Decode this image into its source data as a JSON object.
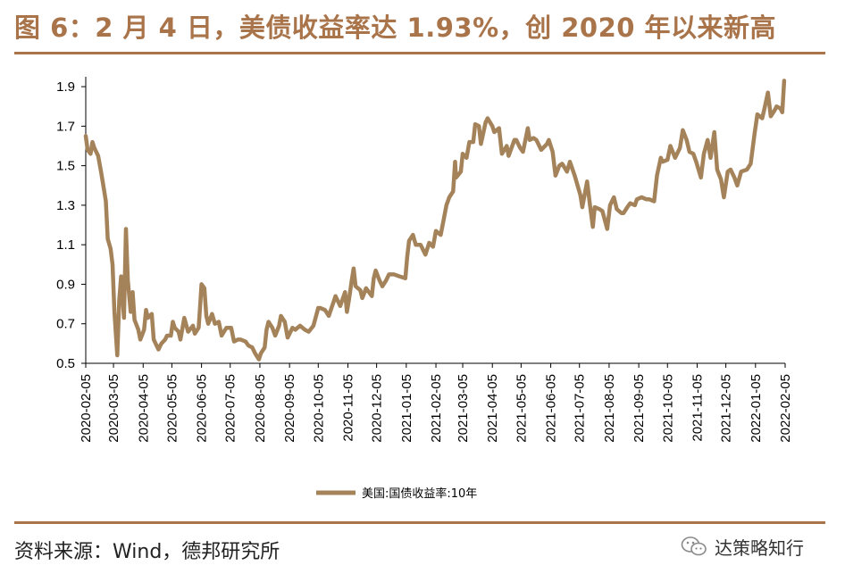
{
  "title": "图 6：2 月 4 日，美债收益率达 1.93%，创 2020 年以来新高",
  "source": "资料来源：Wind，德邦研究所",
  "brand": {
    "name": "达策略知行",
    "icon": "wechat-icon"
  },
  "colors": {
    "accent": "#a9744a",
    "line": "#a5835a",
    "axis": "#000000"
  },
  "chart_data": {
    "type": "line",
    "title": "",
    "xlabel": "",
    "ylabel": "",
    "ylim": [
      0.5,
      1.95
    ],
    "yticks": [
      "0.5",
      "0.7",
      "0.9",
      "1.1",
      "1.3",
      "1.5",
      "1.7",
      "1.9"
    ],
    "x_ticks": [
      "2020-02-05",
      "2020-03-05",
      "2020-04-05",
      "2020-05-05",
      "2020-06-05",
      "2020-07-05",
      "2020-08-05",
      "2020-09-05",
      "2020-10-05",
      "2020-11-05",
      "2020-12-05",
      "2021-01-05",
      "2021-02-05",
      "2021-03-05",
      "2021-04-05",
      "2021-05-05",
      "2021-06-05",
      "2021-07-05",
      "2021-08-05",
      "2021-09-05",
      "2021-10-05",
      "2021-11-05",
      "2021-12-05",
      "2022-01-05",
      "2022-02-05"
    ],
    "grid": false,
    "legend": "bottom",
    "series": [
      {
        "name": "美国:国债收益率:10年",
        "color": "#a5835a",
        "points": [
          [
            "2020-02-05",
            1.65
          ],
          [
            "2020-02-07",
            1.58
          ],
          [
            "2020-02-10",
            1.56
          ],
          [
            "2020-02-12",
            1.62
          ],
          [
            "2020-02-14",
            1.59
          ],
          [
            "2020-02-18",
            1.55
          ],
          [
            "2020-02-21",
            1.47
          ],
          [
            "2020-02-24",
            1.38
          ],
          [
            "2020-02-26",
            1.32
          ],
          [
            "2020-02-28",
            1.13
          ],
          [
            "2020-03-02",
            1.08
          ],
          [
            "2020-03-04",
            1.0
          ],
          [
            "2020-03-06",
            0.76
          ],
          [
            "2020-03-09",
            0.54
          ],
          [
            "2020-03-11",
            0.82
          ],
          [
            "2020-03-13",
            0.94
          ],
          [
            "2020-03-16",
            0.73
          ],
          [
            "2020-03-18",
            1.18
          ],
          [
            "2020-03-20",
            0.92
          ],
          [
            "2020-03-23",
            0.76
          ],
          [
            "2020-03-25",
            0.86
          ],
          [
            "2020-03-27",
            0.72
          ],
          [
            "2020-03-31",
            0.67
          ],
          [
            "2020-04-02",
            0.62
          ],
          [
            "2020-04-06",
            0.67
          ],
          [
            "2020-04-08",
            0.77
          ],
          [
            "2020-04-10",
            0.73
          ],
          [
            "2020-04-14",
            0.75
          ],
          [
            "2020-04-16",
            0.62
          ],
          [
            "2020-04-21",
            0.57
          ],
          [
            "2020-04-24",
            0.6
          ],
          [
            "2020-04-28",
            0.62
          ],
          [
            "2020-04-30",
            0.64
          ],
          [
            "2020-05-04",
            0.64
          ],
          [
            "2020-05-06",
            0.71
          ],
          [
            "2020-05-08",
            0.68
          ],
          [
            "2020-05-12",
            0.66
          ],
          [
            "2020-05-14",
            0.62
          ],
          [
            "2020-05-18",
            0.73
          ],
          [
            "2020-05-22",
            0.66
          ],
          [
            "2020-05-27",
            0.69
          ],
          [
            "2020-05-29",
            0.65
          ],
          [
            "2020-06-02",
            0.68
          ],
          [
            "2020-06-04",
            0.82
          ],
          [
            "2020-06-05",
            0.9
          ],
          [
            "2020-06-08",
            0.88
          ],
          [
            "2020-06-10",
            0.74
          ],
          [
            "2020-06-12",
            0.7
          ],
          [
            "2020-06-16",
            0.75
          ],
          [
            "2020-06-19",
            0.7
          ],
          [
            "2020-06-23",
            0.71
          ],
          [
            "2020-06-26",
            0.64
          ],
          [
            "2020-07-01",
            0.68
          ],
          [
            "2020-07-06",
            0.68
          ],
          [
            "2020-07-09",
            0.61
          ],
          [
            "2020-07-13",
            0.62
          ],
          [
            "2020-07-16",
            0.62
          ],
          [
            "2020-07-21",
            0.61
          ],
          [
            "2020-07-24",
            0.59
          ],
          [
            "2020-07-28",
            0.58
          ],
          [
            "2020-07-31",
            0.55
          ],
          [
            "2020-08-04",
            0.52
          ],
          [
            "2020-08-06",
            0.55
          ],
          [
            "2020-08-10",
            0.58
          ],
          [
            "2020-08-12",
            0.67
          ],
          [
            "2020-08-14",
            0.71
          ],
          [
            "2020-08-18",
            0.68
          ],
          [
            "2020-08-21",
            0.64
          ],
          [
            "2020-08-25",
            0.69
          ],
          [
            "2020-08-27",
            0.74
          ],
          [
            "2020-08-31",
            0.71
          ],
          [
            "2020-09-03",
            0.63
          ],
          [
            "2020-09-08",
            0.68
          ],
          [
            "2020-09-11",
            0.67
          ],
          [
            "2020-09-16",
            0.69
          ],
          [
            "2020-09-21",
            0.67
          ],
          [
            "2020-09-25",
            0.66
          ],
          [
            "2020-09-30",
            0.69
          ],
          [
            "2020-10-05",
            0.78
          ],
          [
            "2020-10-07",
            0.78
          ],
          [
            "2020-10-12",
            0.77
          ],
          [
            "2020-10-16",
            0.74
          ],
          [
            "2020-10-21",
            0.81
          ],
          [
            "2020-10-23",
            0.84
          ],
          [
            "2020-10-28",
            0.79
          ],
          [
            "2020-11-02",
            0.86
          ],
          [
            "2020-11-04",
            0.76
          ],
          [
            "2020-11-06",
            0.82
          ],
          [
            "2020-11-09",
            0.92
          ],
          [
            "2020-11-11",
            0.98
          ],
          [
            "2020-11-13",
            0.89
          ],
          [
            "2020-11-18",
            0.87
          ],
          [
            "2020-11-20",
            0.83
          ],
          [
            "2020-11-24",
            0.88
          ],
          [
            "2020-11-30",
            0.84
          ],
          [
            "2020-12-02",
            0.93
          ],
          [
            "2020-12-04",
            0.97
          ],
          [
            "2020-12-08",
            0.92
          ],
          [
            "2020-12-11",
            0.89
          ],
          [
            "2020-12-15",
            0.92
          ],
          [
            "2020-12-18",
            0.95
          ],
          [
            "2020-12-23",
            0.95
          ],
          [
            "2020-12-29",
            0.94
          ],
          [
            "2021-01-04",
            0.93
          ],
          [
            "2021-01-06",
            1.04
          ],
          [
            "2021-01-08",
            1.12
          ],
          [
            "2021-01-12",
            1.15
          ],
          [
            "2021-01-15",
            1.1
          ],
          [
            "2021-01-20",
            1.1
          ],
          [
            "2021-01-25",
            1.05
          ],
          [
            "2021-01-29",
            1.11
          ],
          [
            "2021-02-02",
            1.09
          ],
          [
            "2021-02-05",
            1.17
          ],
          [
            "2021-02-10",
            1.15
          ],
          [
            "2021-02-16",
            1.3
          ],
          [
            "2021-02-19",
            1.34
          ],
          [
            "2021-02-23",
            1.37
          ],
          [
            "2021-02-25",
            1.52
          ],
          [
            "2021-02-26",
            1.44
          ],
          [
            "2021-03-03",
            1.47
          ],
          [
            "2021-03-05",
            1.56
          ],
          [
            "2021-03-09",
            1.54
          ],
          [
            "2021-03-12",
            1.62
          ],
          [
            "2021-03-16",
            1.62
          ],
          [
            "2021-03-18",
            1.71
          ],
          [
            "2021-03-22",
            1.7
          ],
          [
            "2021-03-24",
            1.61
          ],
          [
            "2021-03-29",
            1.72
          ],
          [
            "2021-03-31",
            1.74
          ],
          [
            "2021-04-05",
            1.7
          ],
          [
            "2021-04-07",
            1.67
          ],
          [
            "2021-04-12",
            1.69
          ],
          [
            "2021-04-15",
            1.56
          ],
          [
            "2021-04-20",
            1.6
          ],
          [
            "2021-04-22",
            1.55
          ],
          [
            "2021-04-28",
            1.63
          ],
          [
            "2021-04-30",
            1.63
          ],
          [
            "2021-05-04",
            1.59
          ],
          [
            "2021-05-07",
            1.57
          ],
          [
            "2021-05-12",
            1.69
          ],
          [
            "2021-05-14",
            1.63
          ],
          [
            "2021-05-18",
            1.64
          ],
          [
            "2021-05-21",
            1.63
          ],
          [
            "2021-05-26",
            1.58
          ],
          [
            "2021-06-01",
            1.61
          ],
          [
            "2021-06-03",
            1.63
          ],
          [
            "2021-06-07",
            1.57
          ],
          [
            "2021-06-10",
            1.45
          ],
          [
            "2021-06-14",
            1.5
          ],
          [
            "2021-06-17",
            1.51
          ],
          [
            "2021-06-22",
            1.47
          ],
          [
            "2021-06-25",
            1.52
          ],
          [
            "2021-06-30",
            1.45
          ],
          [
            "2021-07-06",
            1.35
          ],
          [
            "2021-07-08",
            1.29
          ],
          [
            "2021-07-13",
            1.42
          ],
          [
            "2021-07-16",
            1.3
          ],
          [
            "2021-07-19",
            1.19
          ],
          [
            "2021-07-21",
            1.29
          ],
          [
            "2021-07-26",
            1.28
          ],
          [
            "2021-07-29",
            1.27
          ],
          [
            "2021-08-03",
            1.18
          ],
          [
            "2021-08-06",
            1.3
          ],
          [
            "2021-08-10",
            1.34
          ],
          [
            "2021-08-13",
            1.28
          ],
          [
            "2021-08-18",
            1.26
          ],
          [
            "2021-08-20",
            1.26
          ],
          [
            "2021-08-24",
            1.29
          ],
          [
            "2021-08-27",
            1.31
          ],
          [
            "2021-09-01",
            1.3
          ],
          [
            "2021-09-03",
            1.33
          ],
          [
            "2021-09-08",
            1.34
          ],
          [
            "2021-09-13",
            1.33
          ],
          [
            "2021-09-16",
            1.33
          ],
          [
            "2021-09-21",
            1.32
          ],
          [
            "2021-09-24",
            1.45
          ],
          [
            "2021-09-28",
            1.54
          ],
          [
            "2021-09-30",
            1.52
          ],
          [
            "2021-10-05",
            1.53
          ],
          [
            "2021-10-08",
            1.6
          ],
          [
            "2021-10-13",
            1.54
          ],
          [
            "2021-10-18",
            1.59
          ],
          [
            "2021-10-21",
            1.68
          ],
          [
            "2021-10-25",
            1.63
          ],
          [
            "2021-10-28",
            1.57
          ],
          [
            "2021-11-01",
            1.56
          ],
          [
            "2021-11-04",
            1.52
          ],
          [
            "2021-11-09",
            1.44
          ],
          [
            "2021-11-12",
            1.56
          ],
          [
            "2021-11-16",
            1.63
          ],
          [
            "2021-11-19",
            1.54
          ],
          [
            "2021-11-23",
            1.67
          ],
          [
            "2021-11-26",
            1.48
          ],
          [
            "2021-11-30",
            1.43
          ],
          [
            "2021-12-03",
            1.34
          ],
          [
            "2021-12-07",
            1.47
          ],
          [
            "2021-12-10",
            1.48
          ],
          [
            "2021-12-14",
            1.44
          ],
          [
            "2021-12-17",
            1.4
          ],
          [
            "2021-12-21",
            1.47
          ],
          [
            "2021-12-27",
            1.48
          ],
          [
            "2021-12-31",
            1.51
          ],
          [
            "2022-01-04",
            1.66
          ],
          [
            "2022-01-07",
            1.76
          ],
          [
            "2022-01-12",
            1.74
          ],
          [
            "2022-01-14",
            1.78
          ],
          [
            "2022-01-18",
            1.87
          ],
          [
            "2022-01-21",
            1.75
          ],
          [
            "2022-01-25",
            1.78
          ],
          [
            "2022-01-27",
            1.8
          ],
          [
            "2022-01-31",
            1.79
          ],
          [
            "2022-02-02",
            1.77
          ],
          [
            "2022-02-04",
            1.93
          ]
        ]
      }
    ]
  }
}
